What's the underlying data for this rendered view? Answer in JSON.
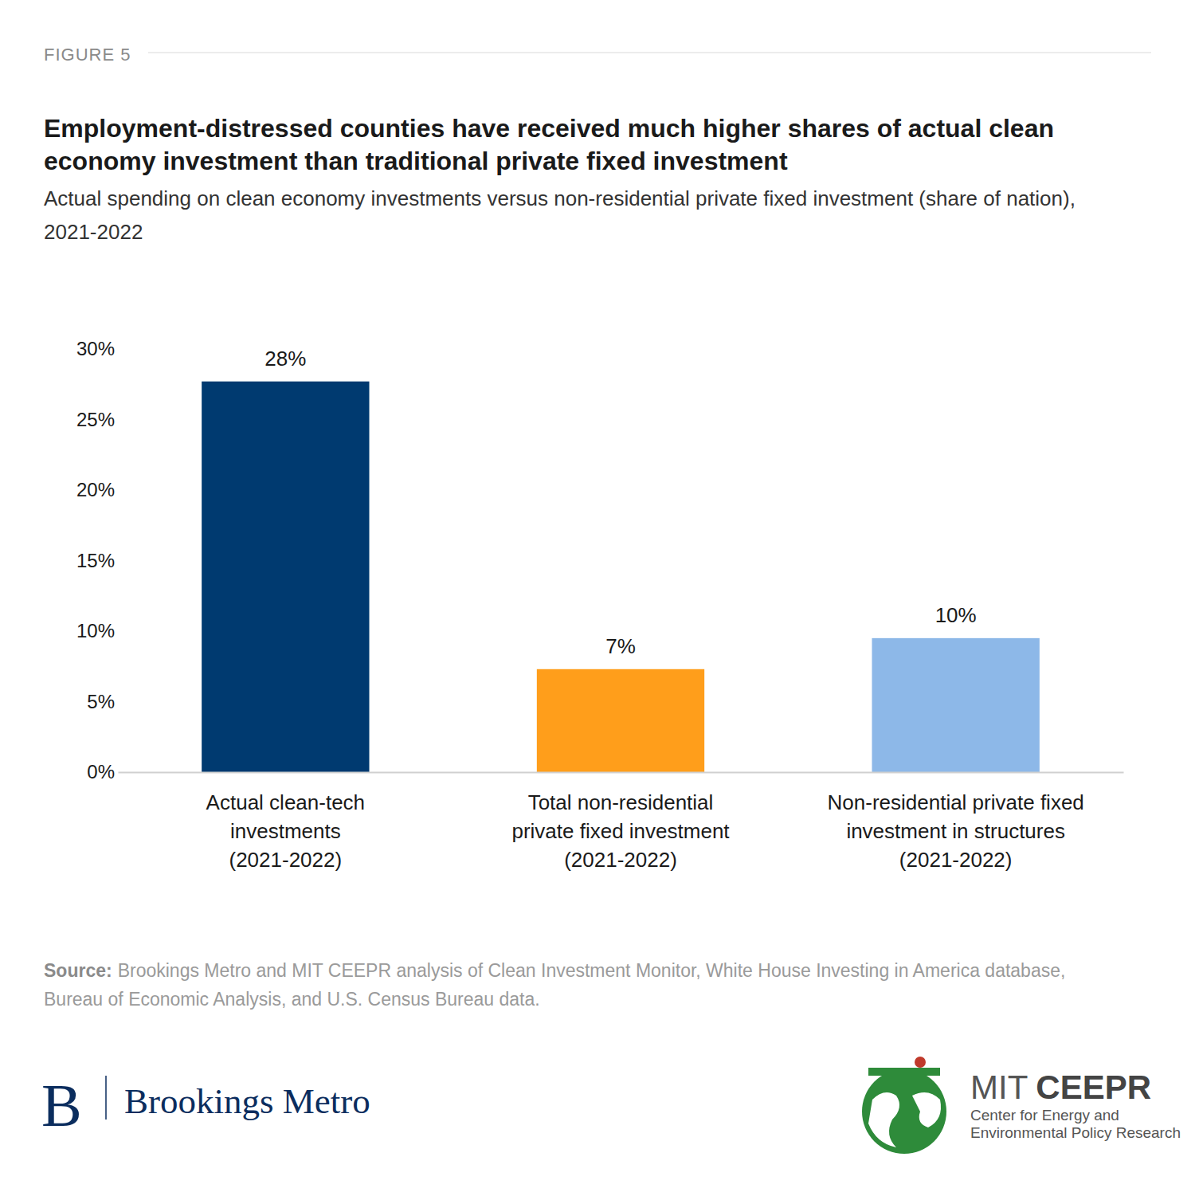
{
  "chart_data": {
    "type": "bar",
    "figure_label": "FIGURE 5",
    "title": "Employment-distressed counties have received much higher shares of actual clean economy investment than traditional private fixed investment",
    "subtitle": "Actual spending on clean economy investments versus non-residential private fixed investment (share of nation), 2021-2022",
    "categories": [
      "Actual clean-tech\ninvestments\n(2021-2022)",
      "Total non-residential\nprivate fixed investment\n(2021-2022)",
      "Non-residential private fixed\ninvestment in structures\n(2021-2022)"
    ],
    "values": [
      27.7,
      7.3,
      9.5
    ],
    "value_labels": [
      "28%",
      "7%",
      "10%"
    ],
    "colors": [
      "#003A70",
      "#FF9E1B",
      "#8DB8E8"
    ],
    "data_labels": true,
    "grid": false,
    "ylim": [
      0,
      30
    ],
    "yticks": [
      {
        "value": 0,
        "label": "0%"
      },
      {
        "value": 5,
        "label": "5%"
      },
      {
        "value": 10,
        "label": "10%"
      },
      {
        "value": 15,
        "label": "15%"
      },
      {
        "value": 20,
        "label": "20%"
      },
      {
        "value": 25,
        "label": "25%"
      },
      {
        "value": 30,
        "label": "30%"
      }
    ],
    "source_label": "Source:",
    "source": "Brookings Metro and MIT CEEPR analysis of Clean Investment Monitor, White House Investing in America database, Bureau of Economic Analysis, and U.S. Census Bureau data.",
    "brand_left_initial": "B",
    "brand_left": "Brookings Metro",
    "brand_right_prefix": "MIT",
    "brand_right": "CEEPR",
    "brand_right_tagline": [
      "Center for Energy and",
      "Environmental Policy Research"
    ]
  }
}
